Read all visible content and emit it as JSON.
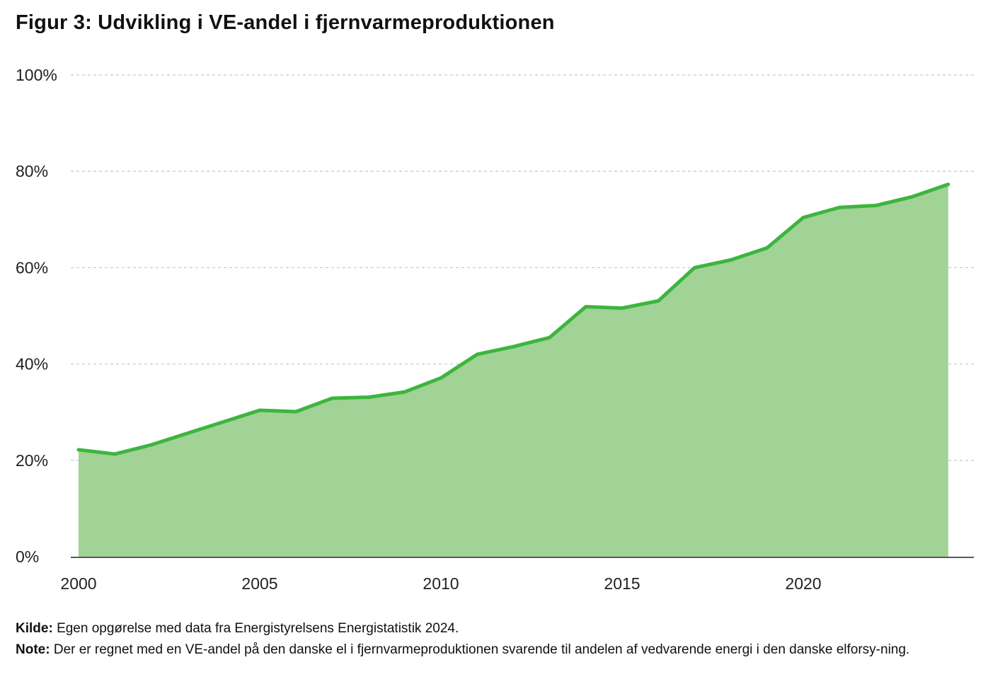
{
  "title": "Figur 3: Udvikling i VE-andel i fjernvarmeproduktionen",
  "colors": {
    "line": "#3db53d",
    "fill": "#a1d296",
    "grid": "#b9cfdc",
    "axis": "#222222"
  },
  "chart_data": {
    "type": "area",
    "title": "Figur 3: Udvikling i VE-andel i fjernvarmeproduktionen",
    "xlabel": "",
    "ylabel": "",
    "x": [
      2000,
      2001,
      2002,
      2003,
      2004,
      2005,
      2006,
      2007,
      2008,
      2009,
      2010,
      2011,
      2012,
      2013,
      2014,
      2015,
      2016,
      2017,
      2018,
      2019,
      2020,
      2021,
      2022,
      2023,
      2024
    ],
    "values": [
      22.2,
      21.3,
      23.2,
      25.6,
      28.0,
      30.4,
      30.1,
      32.9,
      33.1,
      34.2,
      37.1,
      42.0,
      43.6,
      45.5,
      51.9,
      51.6,
      53.1,
      60.0,
      61.6,
      64.1,
      70.4,
      72.5,
      72.9,
      74.7,
      77.3
    ],
    "ylim": [
      0,
      100
    ],
    "xlim": [
      2000,
      2025
    ],
    "yticks": [
      0,
      20,
      40,
      60,
      80,
      100
    ],
    "ytick_labels": [
      "0%",
      "20%",
      "40%",
      "60%",
      "80%",
      "100%"
    ],
    "xticks": [
      2000,
      2005,
      2010,
      2015,
      2020
    ],
    "xtick_labels": [
      "2000",
      "2005",
      "2010",
      "2015",
      "2020"
    ],
    "grid": true,
    "legend": "none"
  },
  "footer": {
    "source_label": "Kilde:",
    "source_text": "Egen opgørelse med data fra Energistyrelsens Energistatistik 2024.",
    "note_label": "Note:",
    "note_text": "Der er regnet med en VE-andel på den danske el i fjernvarmeproduktionen svarende til andelen af vedvarende energi i den danske elforsy-ning."
  }
}
